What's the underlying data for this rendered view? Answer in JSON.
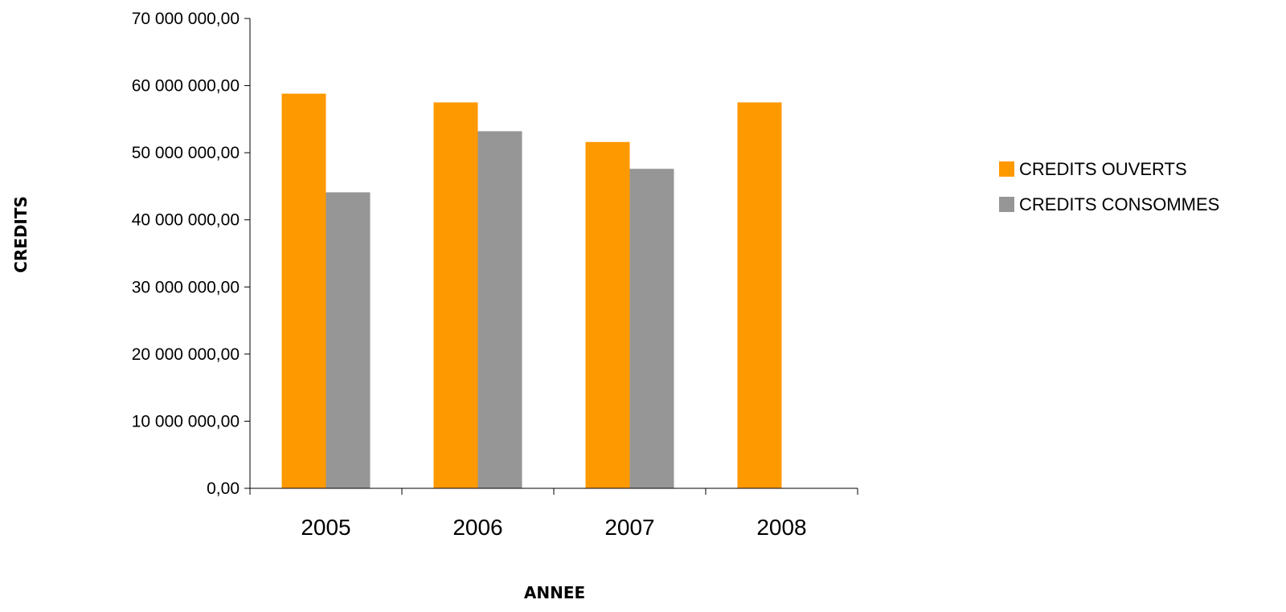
{
  "chart_data": {
    "type": "bar",
    "title": "",
    "xlabel": "ANNEE",
    "ylabel": "CREDITS",
    "categories": [
      "2005",
      "2006",
      "2007",
      "2008"
    ],
    "series": [
      {
        "name": "CREDITS OUVERTS",
        "color": "#FF9900",
        "values": [
          58800000,
          57500000,
          51600000,
          57500000
        ]
      },
      {
        "name": "CREDITS CONSOMMES",
        "color": "#969696",
        "values": [
          44100000,
          53200000,
          47600000,
          null
        ]
      }
    ],
    "ylim": [
      0,
      70000000
    ],
    "y_ticks": [
      0,
      10000000,
      20000000,
      30000000,
      40000000,
      50000000,
      60000000,
      70000000
    ],
    "y_tick_labels": [
      "0,00",
      "10 000 000,00",
      "20 000 000,00",
      "30 000 000,00",
      "40 000 000,00",
      "50 000 000,00",
      "60 000 000,00",
      "70 000 000,00"
    ],
    "grid": false,
    "legend_position": "right"
  }
}
